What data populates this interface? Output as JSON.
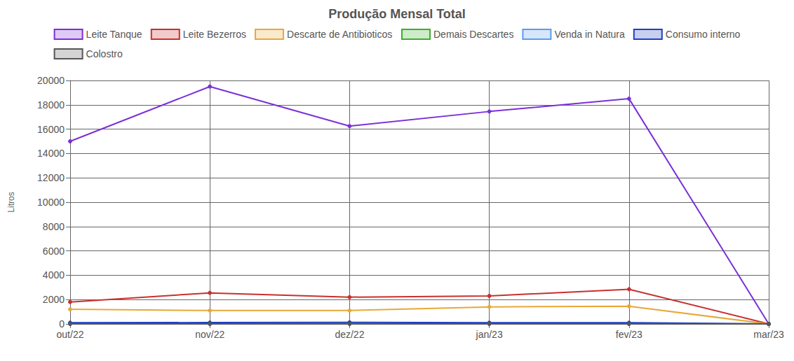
{
  "chart_data": {
    "type": "line",
    "title": "Produção Mensal Total",
    "y_label": "Litros",
    "categories": [
      "out/22",
      "nov/22",
      "dez/22",
      "jan/23",
      "fev/23",
      "mar/23"
    ],
    "series": [
      {
        "name": "Leite Tanque",
        "color": "#7b2fd9",
        "values": [
          15000,
          19500,
          16250,
          17450,
          18500,
          0
        ]
      },
      {
        "name": "Leite Bezerros",
        "color": "#c8302e",
        "values": [
          1800,
          2550,
          2200,
          2300,
          2850,
          0
        ]
      },
      {
        "name": "Descarte de Antibioticos",
        "color": "#e8a838",
        "values": [
          1200,
          1100,
          1100,
          1400,
          1450,
          0
        ]
      },
      {
        "name": "Demais Descartes",
        "color": "#3cb02a",
        "values": [
          20,
          20,
          30,
          20,
          20,
          0
        ]
      },
      {
        "name": "Venda in Natura",
        "color": "#5b9cf0",
        "values": [
          0,
          0,
          0,
          0,
          0,
          0
        ]
      },
      {
        "name": "Consumo interno",
        "color": "#2040c0",
        "values": [
          100,
          110,
          130,
          100,
          100,
          0
        ]
      },
      {
        "name": "Colostro",
        "color": "#555555",
        "values": [
          0,
          0,
          0,
          0,
          0,
          0
        ]
      }
    ],
    "ylim": [
      0,
      20000
    ],
    "yticks": [
      0,
      2000,
      4000,
      6000,
      8000,
      10000,
      12000,
      14000,
      16000,
      18000,
      20000
    ],
    "grid": true,
    "legend": "top",
    "marker": "circle"
  }
}
